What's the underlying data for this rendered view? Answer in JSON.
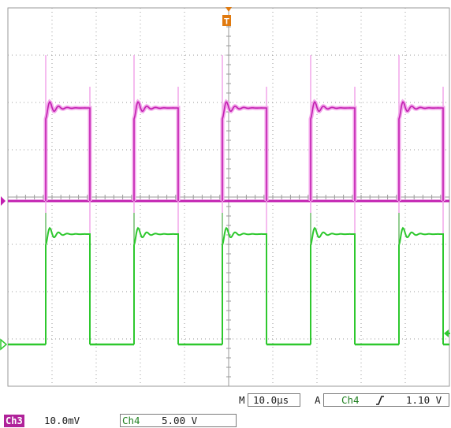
{
  "colors": {
    "background": "#ffffff",
    "grid": "#9a9a9a",
    "ch3_trace": "#c21fb0",
    "ch3_trace_glow": "#f2a6ea",
    "ch4_trace": "#2ec82e",
    "trigger_marker": "#e07a10",
    "ch3_badge": "#b0229a"
  },
  "markers": {
    "trigger_position": "T",
    "ch3_ground": "ch3-ground-marker-icon",
    "ch4_ground": "ch4-ground-marker-icon",
    "trigger_level": "trigger-level-arrow-icon"
  },
  "status_bar": {
    "timebase_prefix": "M",
    "timebase_value": "10.0µs",
    "trigger_mode": "A",
    "trigger_source": "Ch4",
    "trigger_slope_icon": "rising-edge-icon",
    "trigger_level": "1.10 V"
  },
  "channels": {
    "ch3": {
      "name": "Ch3",
      "scale": "10.0mV"
    },
    "ch4": {
      "name": "Ch4",
      "scale": "5.00 V"
    }
  },
  "waveform": {
    "period_us": 20,
    "pulse_width_us": 10,
    "pulses": 5
  }
}
